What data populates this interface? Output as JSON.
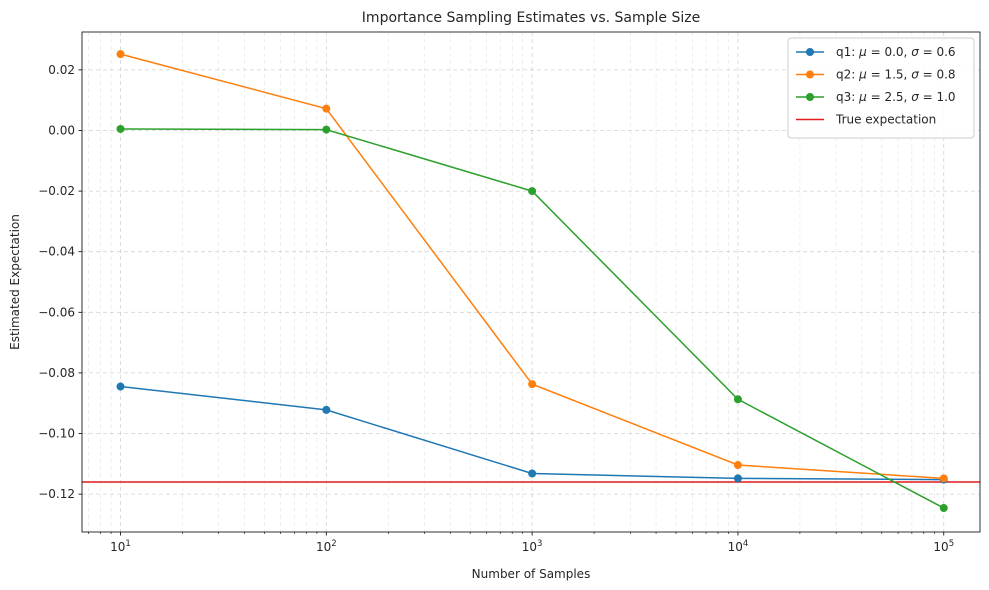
{
  "chart_data": {
    "type": "line",
    "title": "Importance Sampling Estimates vs. Sample Size",
    "xlabel": "Number of Samples",
    "ylabel": "Estimated Expectation",
    "xscale": "log",
    "xlim": [
      6.5,
      150000
    ],
    "ylim": [
      -0.1325,
      0.0325
    ],
    "grid": true,
    "legend_position": "top-right",
    "x": [
      10,
      100,
      1000,
      10000,
      100000
    ],
    "xtick_labels": [
      {
        "value": 10,
        "base": "10",
        "exp": "1"
      },
      {
        "value": 100,
        "base": "10",
        "exp": "2"
      },
      {
        "value": 1000,
        "base": "10",
        "exp": "3"
      },
      {
        "value": 10000,
        "base": "10",
        "exp": "4"
      },
      {
        "value": 100000,
        "base": "10",
        "exp": "5"
      }
    ],
    "yticks": [
      0.02,
      0.0,
      -0.02,
      -0.04,
      -0.06,
      -0.08,
      -0.1,
      -0.12
    ],
    "ytick_labels": [
      "0.02",
      "0.00",
      "−0.02",
      "−0.04",
      "−0.06",
      "−0.08",
      "−0.10",
      "−0.12"
    ],
    "series": [
      {
        "name": "q1",
        "mu": "0.0",
        "sigma": "0.6",
        "color": "#1f77b4",
        "values": [
          -0.0845,
          -0.0922,
          -0.1132,
          -0.1148,
          -0.1152
        ]
      },
      {
        "name": "q2",
        "mu": "1.5",
        "sigma": "0.8",
        "color": "#ff7f0e",
        "values": [
          0.0252,
          0.0072,
          -0.0837,
          -0.1104,
          -0.1148
        ]
      },
      {
        "name": "q3",
        "mu": "2.5",
        "sigma": "1.0",
        "color": "#2ca02c",
        "values": [
          0.0005,
          0.0003,
          -0.02,
          -0.0887,
          -0.1246
        ]
      }
    ],
    "reference_line": {
      "name": "True expectation",
      "value": -0.116,
      "color": "#e41a1c"
    }
  }
}
